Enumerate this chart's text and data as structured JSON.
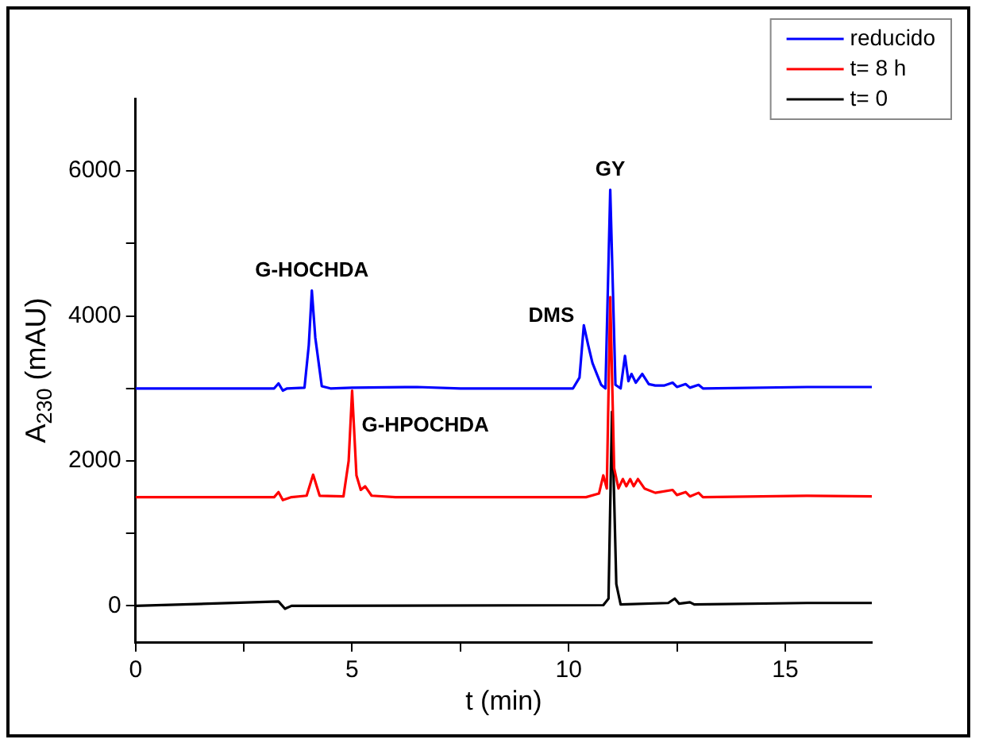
{
  "chart_data": {
    "type": "line",
    "xlabel": "t (min)",
    "ylabel": "A$_{230}$ (mAU)",
    "xlim": [
      0,
      17
    ],
    "xticks": [
      0,
      {
        "value": 2.5,
        "label": null
      },
      5,
      {
        "value": 7.5,
        "label": null
      },
      10,
      {
        "value": 12.5,
        "label": null
      },
      15
    ],
    "ylim": [
      -500,
      7000
    ],
    "yticks": [
      0,
      {
        "value": 1000,
        "label": null
      },
      2000,
      {
        "value": 3000,
        "label": null
      },
      4000,
      {
        "value": 5000,
        "label": null
      },
      6000
    ],
    "grid": false,
    "legend": "top right",
    "marker": "none",
    "line_style": "solid",
    "annotations": [
      {
        "text": "G-HOCHDA",
        "x": 4.07,
        "y": 4350
      },
      {
        "text": "G-HPOCHDA",
        "x": 5.0,
        "y": 2970
      },
      {
        "text": "DMS",
        "x": 10.35,
        "y": 3870
      },
      {
        "text": "GY",
        "x": 10.96,
        "y": 5740
      }
    ],
    "series": [
      {
        "name": "reducido",
        "color": "#0000ff",
        "x": [
          0,
          3.2,
          3.3,
          3.4,
          3.5,
          3.9,
          4.0,
          4.07,
          4.15,
          4.3,
          4.5,
          5.0,
          6.5,
          7.5,
          10.1,
          10.25,
          10.35,
          10.45,
          10.55,
          10.65,
          10.75,
          10.85,
          10.96,
          11.08,
          11.2,
          11.3,
          11.38,
          11.45,
          11.55,
          11.7,
          11.85,
          12.0,
          12.2,
          12.4,
          12.5,
          12.7,
          12.8,
          13.0,
          13.1,
          15.5,
          17
        ],
        "values": [
          3000,
          3000,
          3070,
          2970,
          3000,
          3010,
          3600,
          4350,
          3700,
          3030,
          3000,
          3010,
          3020,
          3000,
          3000,
          3150,
          3870,
          3600,
          3350,
          3200,
          3050,
          3000,
          5740,
          3050,
          3000,
          3450,
          3100,
          3200,
          3080,
          3200,
          3060,
          3040,
          3040,
          3080,
          3020,
          3060,
          3010,
          3050,
          3000,
          3020,
          3020
        ]
      },
      {
        "name": "t= 8 h",
        "color": "#ff0000",
        "x": [
          0,
          3.2,
          3.3,
          3.4,
          3.6,
          3.95,
          4.1,
          4.25,
          4.8,
          4.92,
          5.0,
          5.1,
          5.2,
          5.3,
          5.45,
          6,
          10.4,
          10.7,
          10.8,
          10.88,
          10.96,
          11.05,
          11.15,
          11.25,
          11.33,
          11.42,
          11.5,
          11.6,
          11.75,
          12.0,
          12.4,
          12.5,
          12.7,
          12.8,
          13.0,
          13.1,
          15.5,
          17
        ],
        "values": [
          1500,
          1500,
          1570,
          1460,
          1500,
          1520,
          1810,
          1520,
          1510,
          2000,
          2970,
          1800,
          1600,
          1650,
          1520,
          1500,
          1500,
          1550,
          1800,
          1620,
          4260,
          1900,
          1620,
          1750,
          1650,
          1750,
          1650,
          1750,
          1620,
          1560,
          1600,
          1530,
          1570,
          1510,
          1560,
          1500,
          1520,
          1510
        ]
      },
      {
        "name": "t= 0",
        "color": "#000000",
        "x": [
          0,
          3.3,
          3.45,
          3.6,
          10.8,
          10.92,
          11.0,
          11.1,
          11.2,
          12.3,
          12.45,
          12.55,
          12.8,
          12.9,
          15.5,
          17
        ],
        "values": [
          0,
          60,
          -40,
          0,
          10,
          100,
          2680,
          300,
          20,
          40,
          100,
          30,
          50,
          20,
          40,
          40
        ]
      }
    ]
  }
}
